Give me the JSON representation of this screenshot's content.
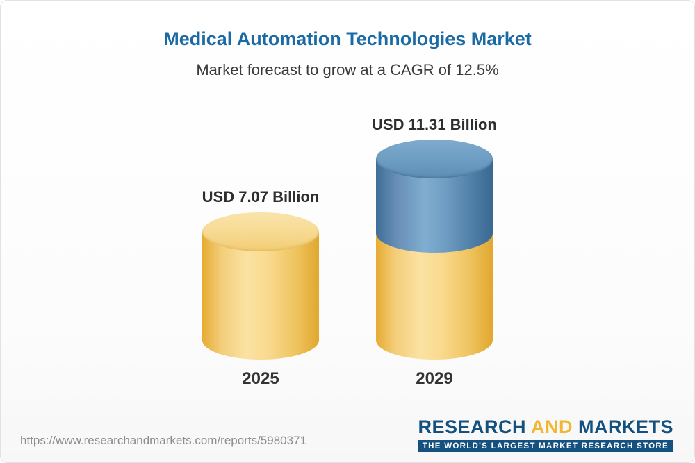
{
  "header": {
    "title": "Medical Automation Technologies Market",
    "subtitle": "Market forecast to grow at a CAGR of 12.5%"
  },
  "chart_data": {
    "type": "bar",
    "bar_style": "3d-cylinder",
    "title": "Medical Automation Technologies Market",
    "subtitle": "Market forecast to grow at a CAGR of 12.5%",
    "categories": [
      "2025",
      "2029"
    ],
    "values": [
      7.07,
      11.31
    ],
    "unit": "USD Billion",
    "value_labels": [
      "USD 7.07 Billion",
      "USD 11.31 Billion"
    ],
    "cagr_percent": 12.5,
    "legend": "none",
    "axes": "none",
    "layout_note": "2029 cylinder shows baseline portion in yellow with growth portion stacked on top in blue",
    "colors": {
      "baseline_yellow": "#F5C85C",
      "growth_blue": "#55809F",
      "title_blue": "#1A6AA5"
    }
  },
  "footer": {
    "url": "https://www.researchandmarkets.com/reports/5980371",
    "logo": {
      "word1": "RESEARCH",
      "word2": "AND",
      "word3": "MARKETS",
      "tagline": "THE WORLD'S LARGEST MARKET RESEARCH STORE"
    }
  }
}
